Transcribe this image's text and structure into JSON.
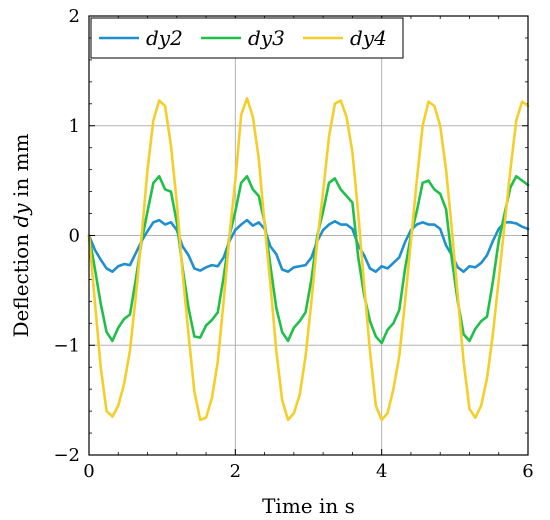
{
  "chart_data": {
    "type": "line",
    "xlabel_parts": [
      "Time in s"
    ],
    "ylabel_parts": [
      "Deflection ",
      "dy",
      " in mm"
    ],
    "xlim": [
      0,
      6
    ],
    "ylim": [
      -2,
      2
    ],
    "x_ticks": [
      0,
      2,
      4,
      6
    ],
    "y_ticks": [
      -2,
      -1,
      0,
      1,
      2
    ],
    "x_tick_labels": [
      "0",
      "2",
      "4",
      "6"
    ],
    "y_tick_labels": [
      "−2",
      "−1",
      "0",
      "1",
      "2"
    ],
    "grid": true,
    "legend_position": "top-left",
    "series": [
      {
        "name": "dy2",
        "color": "#1f8fd0",
        "x": [
          0,
          0.08,
          0.16,
          0.24,
          0.32,
          0.4,
          0.48,
          0.56,
          0.64,
          0.72,
          0.8,
          0.88,
          0.96,
          1.04,
          1.12,
          1.2,
          1.28,
          1.36,
          1.44,
          1.52,
          1.6,
          1.68,
          1.76,
          1.84,
          1.92,
          2.0,
          2.08,
          2.16,
          2.24,
          2.32,
          2.4,
          2.48,
          2.56,
          2.64,
          2.72,
          2.8,
          2.88,
          2.96,
          3.04,
          3.12,
          3.2,
          3.28,
          3.36,
          3.44,
          3.52,
          3.6,
          3.68,
          3.76,
          3.84,
          3.92,
          4.0,
          4.08,
          4.16,
          4.24,
          4.32,
          4.4,
          4.48,
          4.56,
          4.64,
          4.72,
          4.8,
          4.88,
          4.96,
          5.04,
          5.12,
          5.2,
          5.28,
          5.36,
          5.44,
          5.52,
          5.6,
          5.68,
          5.76,
          5.84,
          5.92,
          6.0
        ],
        "y": [
          0,
          -0.13,
          -0.22,
          -0.3,
          -0.33,
          -0.28,
          -0.26,
          -0.27,
          -0.16,
          -0.05,
          0.04,
          0.12,
          0.14,
          0.1,
          0.12,
          0.05,
          -0.1,
          -0.18,
          -0.3,
          -0.32,
          -0.29,
          -0.27,
          -0.28,
          -0.2,
          -0.05,
          0.05,
          0.1,
          0.14,
          0.09,
          0.12,
          0.06,
          -0.1,
          -0.17,
          -0.31,
          -0.33,
          -0.29,
          -0.28,
          -0.27,
          -0.2,
          -0.05,
          0.05,
          0.1,
          0.13,
          0.1,
          0.1,
          0.06,
          -0.09,
          -0.18,
          -0.3,
          -0.33,
          -0.28,
          -0.3,
          -0.25,
          -0.2,
          -0.06,
          0.05,
          0.1,
          0.12,
          0.1,
          0.1,
          0.06,
          -0.09,
          -0.18,
          -0.29,
          -0.33,
          -0.28,
          -0.29,
          -0.25,
          -0.18,
          -0.05,
          0.06,
          0.12,
          0.12,
          0.11,
          0.08,
          0.06
        ]
      },
      {
        "name": "dy3",
        "color": "#1fc04a",
        "x": [
          0,
          0.08,
          0.16,
          0.24,
          0.32,
          0.4,
          0.48,
          0.56,
          0.64,
          0.72,
          0.8,
          0.88,
          0.96,
          1.04,
          1.12,
          1.2,
          1.28,
          1.36,
          1.44,
          1.52,
          1.6,
          1.68,
          1.76,
          1.84,
          1.92,
          2.0,
          2.08,
          2.16,
          2.24,
          2.32,
          2.4,
          2.48,
          2.56,
          2.64,
          2.72,
          2.8,
          2.88,
          2.96,
          3.04,
          3.12,
          3.2,
          3.28,
          3.36,
          3.44,
          3.52,
          3.6,
          3.68,
          3.76,
          3.84,
          3.92,
          4.0,
          4.08,
          4.16,
          4.24,
          4.32,
          4.4,
          4.48,
          4.56,
          4.64,
          4.72,
          4.8,
          4.88,
          4.96,
          5.04,
          5.12,
          5.2,
          5.28,
          5.36,
          5.44,
          5.52,
          5.6,
          5.68,
          5.76,
          5.84,
          5.92,
          6.0
        ],
        "y": [
          0,
          -0.3,
          -0.62,
          -0.88,
          -0.96,
          -0.84,
          -0.76,
          -0.72,
          -0.4,
          -0.05,
          0.22,
          0.48,
          0.54,
          0.42,
          0.4,
          0.12,
          -0.3,
          -0.66,
          -0.92,
          -0.93,
          -0.82,
          -0.77,
          -0.7,
          -0.38,
          0.0,
          0.22,
          0.48,
          0.54,
          0.42,
          0.36,
          0.12,
          -0.28,
          -0.66,
          -0.88,
          -0.96,
          -0.84,
          -0.78,
          -0.7,
          -0.4,
          0.0,
          0.22,
          0.48,
          0.52,
          0.42,
          0.36,
          0.3,
          -0.2,
          -0.54,
          -0.78,
          -0.92,
          -0.98,
          -0.86,
          -0.8,
          -0.68,
          -0.3,
          0.0,
          0.22,
          0.48,
          0.5,
          0.42,
          0.38,
          0.24,
          -0.22,
          -0.6,
          -0.9,
          -0.96,
          -0.85,
          -0.78,
          -0.74,
          -0.42,
          -0.05,
          0.2,
          0.44,
          0.54,
          0.5,
          0.46
        ]
      },
      {
        "name": "dy4",
        "color": "#f5ce2a",
        "x": [
          0,
          0.08,
          0.16,
          0.24,
          0.32,
          0.4,
          0.48,
          0.56,
          0.64,
          0.72,
          0.8,
          0.88,
          0.96,
          1.04,
          1.12,
          1.2,
          1.28,
          1.36,
          1.44,
          1.52,
          1.6,
          1.68,
          1.76,
          1.84,
          1.92,
          2.0,
          2.08,
          2.16,
          2.24,
          2.32,
          2.4,
          2.48,
          2.56,
          2.64,
          2.72,
          2.8,
          2.88,
          2.96,
          3.04,
          3.12,
          3.2,
          3.28,
          3.36,
          3.44,
          3.52,
          3.6,
          3.68,
          3.76,
          3.84,
          3.92,
          4.0,
          4.08,
          4.16,
          4.24,
          4.32,
          4.4,
          4.48,
          4.56,
          4.64,
          4.72,
          4.8,
          4.88,
          4.96,
          5.04,
          5.12,
          5.2,
          5.28,
          5.36,
          5.44,
          5.52,
          5.6,
          5.68,
          5.76,
          5.84,
          5.92,
          6.0
        ],
        "y": [
          0,
          -0.6,
          -1.2,
          -1.6,
          -1.65,
          -1.55,
          -1.35,
          -1.05,
          -0.55,
          0.0,
          0.6,
          1.05,
          1.23,
          1.18,
          0.82,
          0.3,
          -0.35,
          -0.9,
          -1.42,
          -1.68,
          -1.66,
          -1.48,
          -1.15,
          -0.6,
          0.0,
          0.5,
          1.1,
          1.25,
          1.08,
          0.7,
          0.1,
          -0.45,
          -1.05,
          -1.5,
          -1.68,
          -1.62,
          -1.45,
          -1.1,
          -0.6,
          -0.05,
          0.4,
          0.9,
          1.2,
          1.23,
          1.08,
          0.76,
          0.2,
          -0.45,
          -1.05,
          -1.55,
          -1.68,
          -1.62,
          -1.4,
          -1.1,
          -0.6,
          -0.05,
          0.5,
          1.0,
          1.22,
          1.18,
          1.0,
          0.6,
          0.05,
          -0.55,
          -1.15,
          -1.58,
          -1.66,
          -1.55,
          -1.3,
          -0.9,
          -0.4,
          0.1,
          0.6,
          1.05,
          1.22,
          1.18
        ]
      }
    ]
  }
}
